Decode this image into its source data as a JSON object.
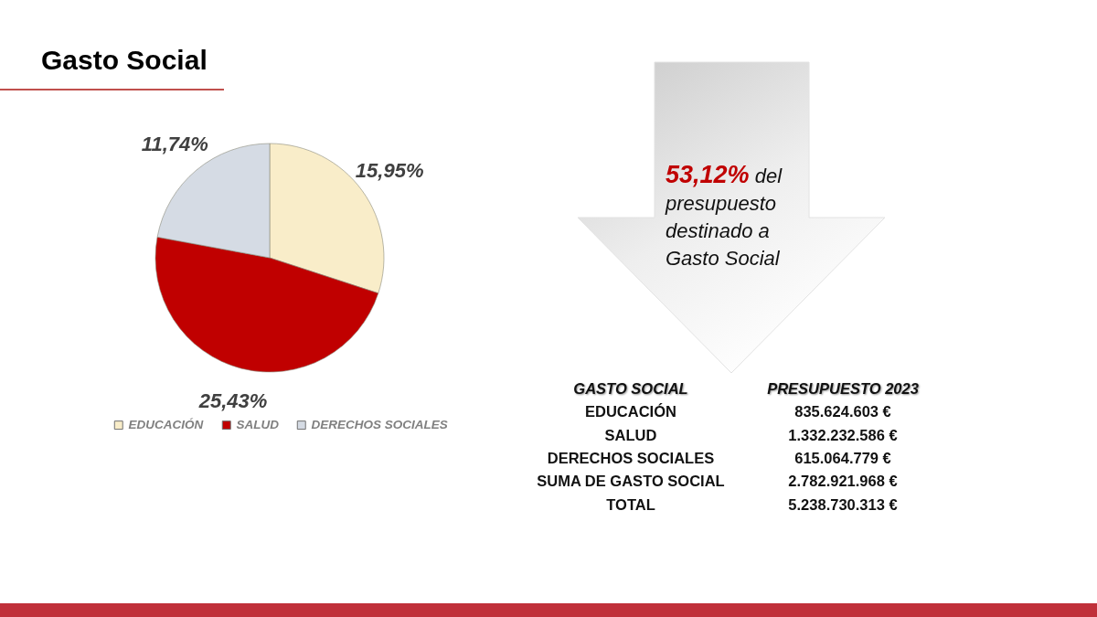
{
  "chart_data": {
    "type": "pie",
    "title": "Gasto Social",
    "categories": [
      "EDUCACIÓN",
      "SALUD",
      "DERECHOS SOCIALES"
    ],
    "values": [
      15.95,
      25.43,
      11.74
    ],
    "colors": [
      "#f9edc9",
      "#c00000",
      "#d5dbe4"
    ],
    "value_labels": [
      "15,95%",
      "25,43%",
      "11,74%"
    ],
    "legend": "bottom",
    "annotations": [
      "53,12%",
      "del presupuesto destinado a Gasto Social",
      "GASTO SOCIAL",
      "PRESUPUESTO 2023",
      "EDUCACIÓN",
      "835.624.603 €",
      "SALUD",
      "1.332.232.586 €",
      "DERECHOS SOCIALES",
      "615.064.779 €",
      "SUMA DE GASTO SOCIAL",
      "2.782.921.968 €",
      "TOTAL",
      "5.238.730.313 €"
    ]
  }
}
